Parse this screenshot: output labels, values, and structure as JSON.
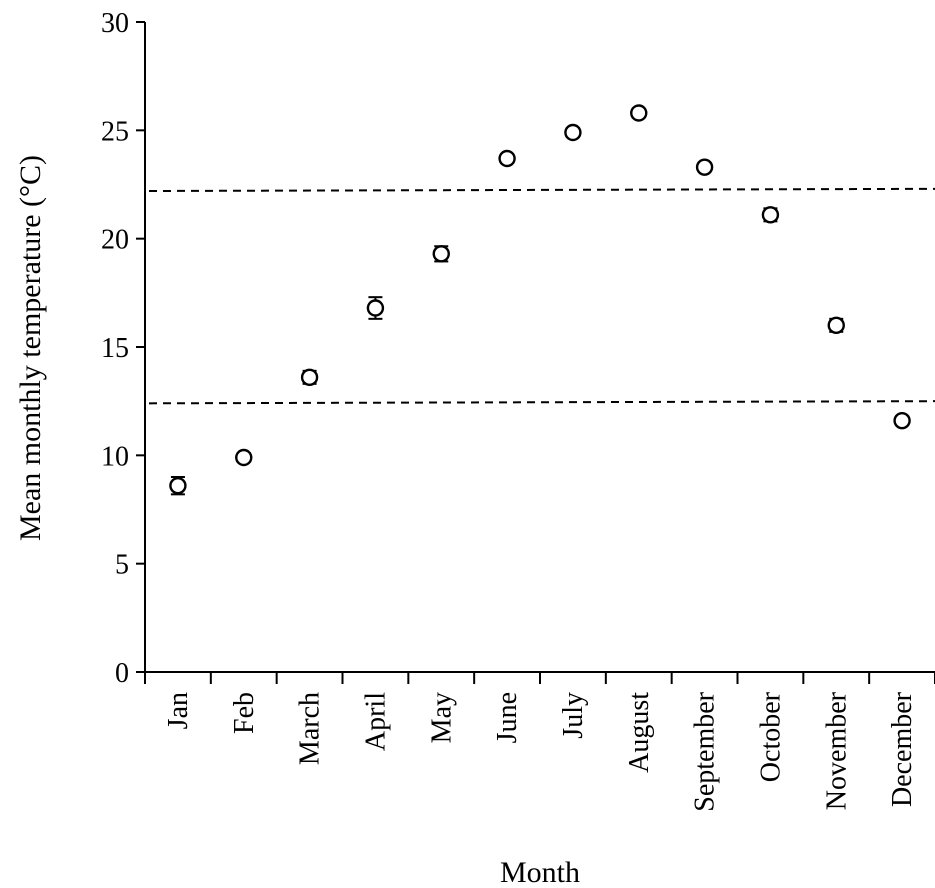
{
  "chart_data": {
    "type": "scatter",
    "title": "",
    "xlabel": "Month",
    "ylabel": "Mean monthly temperature (°C)",
    "ylim": [
      0,
      30
    ],
    "yticks": [
      0,
      5,
      10,
      15,
      20,
      25,
      30
    ],
    "categories": [
      "Jan",
      "Feb",
      "March",
      "April",
      "May",
      "June",
      "July",
      "August",
      "September",
      "October",
      "November",
      "December"
    ],
    "series": [
      {
        "values": [
          8.6,
          9.9,
          13.6,
          16.8,
          19.3,
          23.7,
          24.9,
          25.8,
          23.3,
          21.1,
          16.0,
          11.6
        ],
        "error": [
          0.4,
          0.2,
          0.3,
          0.5,
          0.35,
          0.2,
          0.2,
          0.2,
          0.2,
          0.3,
          0.3,
          0.2
        ]
      }
    ],
    "reference_lines": [
      {
        "style": "dashed",
        "y_start": 22.2,
        "y_end": 22.3
      },
      {
        "style": "dashed",
        "y_start": 12.4,
        "y_end": 12.5
      }
    ],
    "grid": false,
    "legend": "none"
  }
}
